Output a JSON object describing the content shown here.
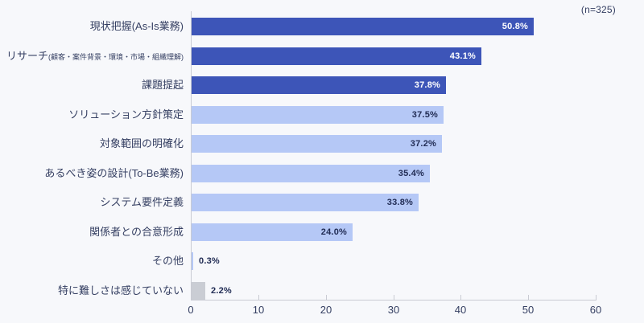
{
  "header": {
    "sample_note": "(n=325)"
  },
  "chart_data": {
    "type": "bar",
    "orientation": "horizontal",
    "title": "",
    "sample_note": "(n=325)",
    "xlim": [
      0,
      60
    ],
    "x_ticks": [
      "0",
      "10",
      "20",
      "30",
      "40",
      "50",
      "60"
    ],
    "grid": false,
    "legend": "none",
    "categories": [
      "現状把握(As-Is業務)",
      "リサーチ(顧客・案件背景・環境・市場・組織理解)",
      "課題提起",
      "ソリューション方針策定",
      "対象範囲の明確化",
      "あるべき姿の設計(To-Be業務)",
      "システム要件定義",
      "関係者との合意形成",
      "その他",
      "特に難しさは感じていない"
    ],
    "values": [
      50.8,
      43.1,
      37.8,
      37.5,
      37.2,
      35.4,
      33.8,
      24.0,
      0.3,
      2.2
    ],
    "bars": [
      {
        "label": "現状把握(As-Is業務)",
        "sub": "",
        "value": 50.8,
        "display": "50.8%",
        "color": "#3D55B8",
        "value_color": "#FFFFFF",
        "value_inside": true
      },
      {
        "label": "リサーチ",
        "sub": "(顧客・案件背景・環境・市場・組織理解)",
        "value": 43.1,
        "display": "43.1%",
        "color": "#3D55B8",
        "value_color": "#FFFFFF",
        "value_inside": true
      },
      {
        "label": "課題提起",
        "sub": "",
        "value": 37.8,
        "display": "37.8%",
        "color": "#3D55B8",
        "value_color": "#FFFFFF",
        "value_inside": true
      },
      {
        "label": "ソリューション方針策定",
        "sub": "",
        "value": 37.5,
        "display": "37.5%",
        "color": "#B5C8F6",
        "value_color": "#222D55",
        "value_inside": true
      },
      {
        "label": "対象範囲の明確化",
        "sub": "",
        "value": 37.2,
        "display": "37.2%",
        "color": "#B5C8F6",
        "value_color": "#222D55",
        "value_inside": true
      },
      {
        "label": "あるべき姿の設計(To-Be業務)",
        "sub": "",
        "value": 35.4,
        "display": "35.4%",
        "color": "#B5C8F6",
        "value_color": "#222D55",
        "value_inside": true
      },
      {
        "label": "システム要件定義",
        "sub": "",
        "value": 33.8,
        "display": "33.8%",
        "color": "#B5C8F6",
        "value_color": "#222D55",
        "value_inside": true
      },
      {
        "label": "関係者との合意形成",
        "sub": "",
        "value": 24.0,
        "display": "24.0%",
        "color": "#B5C8F6",
        "value_color": "#222D55",
        "value_inside": true
      },
      {
        "label": "その他",
        "sub": "",
        "value": 0.3,
        "display": "0.3%",
        "color": "#B5C8F6",
        "value_color": "#222D55",
        "value_inside": false
      },
      {
        "label": "特に難しさは感じていない",
        "sub": "",
        "value": 2.2,
        "display": "2.2%",
        "color": "#CACDD4",
        "value_color": "#222D55",
        "value_inside": false
      }
    ],
    "colors": {
      "dark_blue": "#3D55B8",
      "light_blue": "#B5C8F6",
      "gray": "#CACDD4",
      "background": "#F7F8FB",
      "axis_line": "#C9CBD3",
      "text": "#364063",
      "value_text_dark": "#222D55",
      "value_text_light": "#FFFFFF"
    }
  }
}
